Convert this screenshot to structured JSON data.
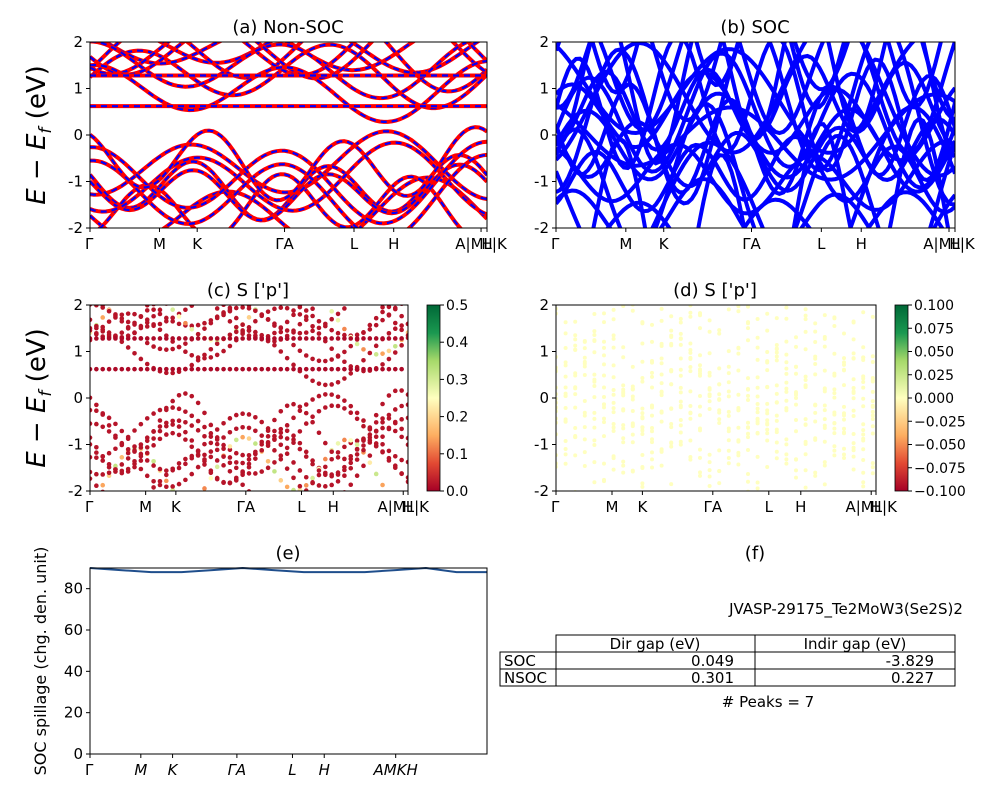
{
  "chart_data": [
    {
      "id": "a",
      "type": "line",
      "title": "(a) Non-SOC",
      "ylabel": "E − E_f (eV)",
      "ylim": [
        -2,
        2
      ],
      "yticks": [
        "-2",
        "-1",
        "0",
        "1",
        "2"
      ],
      "kpath_labels": [
        "Γ",
        "M",
        "K",
        "ΓA",
        "L",
        "H",
        "A|ML|K",
        "H"
      ],
      "flat_bands_eV": [
        1.28,
        0.62
      ],
      "series": [
        {
          "color": "#ff0000",
          "style": "solid"
        },
        {
          "color": "#0000ff",
          "style": "dashed"
        }
      ]
    },
    {
      "id": "b",
      "type": "line",
      "title": "(b) SOC",
      "ylim": [
        -2,
        2
      ],
      "yticks": [
        "-2",
        "-1",
        "0",
        "1",
        "2"
      ],
      "kpath_labels": [
        "Γ",
        "M",
        "K",
        "ΓA",
        "L",
        "H",
        "A|ML|K",
        "H"
      ],
      "series": [
        {
          "color": "#0000ff",
          "style": "solid"
        }
      ]
    },
    {
      "id": "c",
      "type": "scatter",
      "title": "(c)  S ['p']",
      "ylabel": "E − E_f (eV)",
      "ylim": [
        -2,
        2
      ],
      "yticks": [
        "-2",
        "-1",
        "0",
        "1",
        "2"
      ],
      "kpath_labels": [
        "Γ",
        "M",
        "K",
        "ΓA",
        "L",
        "H",
        "A|ML|K",
        "H"
      ],
      "colorbar": {
        "cmap": "RdYlGn",
        "range": [
          0.0,
          0.5
        ],
        "ticks": [
          "0.0",
          "0.1",
          "0.2",
          "0.3",
          "0.4",
          "0.5"
        ]
      }
    },
    {
      "id": "d",
      "type": "scatter",
      "title": "(d) S ['p']",
      "ylim": [
        -2,
        2
      ],
      "yticks": [
        "-2",
        "-1",
        "0",
        "1",
        "2"
      ],
      "kpath_labels": [
        "Γ",
        "M",
        "K",
        "ΓA",
        "L",
        "H",
        "A|ML|K",
        "H"
      ],
      "colorbar": {
        "cmap": "RdYlGn",
        "range": [
          -0.1,
          0.1
        ],
        "ticks": [
          "−0.100",
          "−0.075",
          "−0.050",
          "−0.025",
          "0.000",
          "0.025",
          "0.050",
          "0.075",
          "0.100"
        ]
      }
    },
    {
      "id": "e",
      "type": "line",
      "title": "(e)",
      "ylabel": "SOC spillage (chg. den. unit)",
      "ylim": [
        0,
        90
      ],
      "yticks": [
        "0",
        "20",
        "40",
        "60",
        "80"
      ],
      "kpath_labels": [
        "Γ",
        "M",
        "K",
        "ΓA",
        "L",
        "H",
        "AMKH"
      ],
      "series": [
        {
          "color": "#1f4e8c",
          "values_approx": [
            90,
            89,
            88,
            88,
            89,
            90,
            89,
            88,
            88,
            88,
            89,
            90,
            88,
            88
          ]
        }
      ]
    },
    {
      "id": "f",
      "type": "table",
      "title": "(f)",
      "material": "JVASP-29175_Te2MoW3(Se2S)2",
      "columns": [
        "",
        "Dir gap (eV)",
        "Indir gap (eV)"
      ],
      "rows": [
        {
          "label": "SOC",
          "dir": "0.049",
          "indir": "-3.829"
        },
        {
          "label": "NSOC",
          "dir": "0.301",
          "indir": "0.227"
        }
      ],
      "note": "# Peaks = 7"
    }
  ]
}
